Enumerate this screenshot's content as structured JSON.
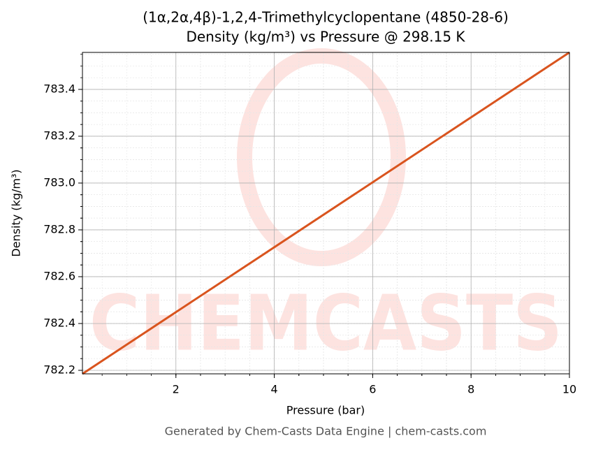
{
  "chart_data": {
    "type": "line",
    "title": "(1α,2α,4β)-1,2,4-Trimethylcyclopentane (4850-28-6)",
    "subtitle": "Density (kg/m³) vs Pressure @ 298.15 K",
    "x_label": "Pressure (bar)",
    "y_label": "Density (kg/m³)",
    "x": [
      0.1,
      10
    ],
    "series": [
      {
        "name": "Density",
        "color": "#d9541e",
        "values": [
          782.185,
          783.558
        ]
      }
    ],
    "xlim": [
      0.1,
      10
    ],
    "xticks": [
      2,
      4,
      6,
      8,
      10
    ],
    "ylim": [
      782.185,
      783.558
    ],
    "yticks": [
      782.2,
      782.4,
      782.6,
      782.8,
      783.0,
      783.2,
      783.4
    ],
    "ytick_labels": [
      "782.2",
      "782.4",
      "782.6",
      "782.8",
      "783.0",
      "783.2",
      "783.4"
    ],
    "grid": true,
    "watermark": "CHEMCASTS",
    "footer": "Generated by Chem-Casts Data Engine | chem-casts.com"
  }
}
